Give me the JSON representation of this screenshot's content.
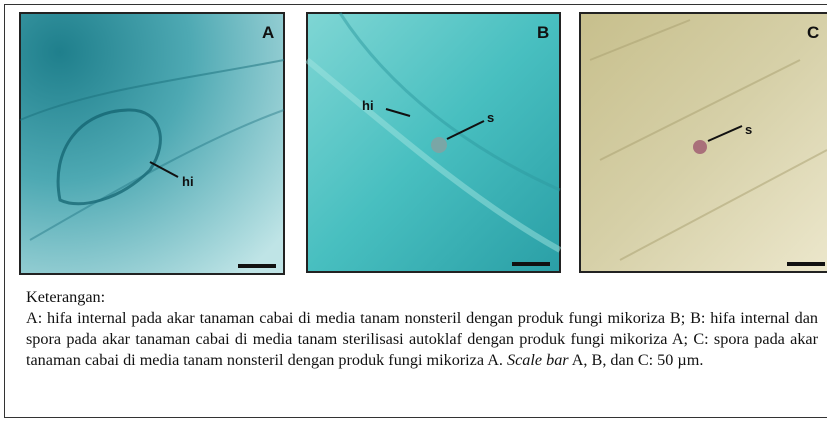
{
  "panels": [
    {
      "label": "A",
      "annotations": [
        "hi"
      ]
    },
    {
      "label": "B",
      "annotations": [
        "hi",
        "s"
      ]
    },
    {
      "label": "C",
      "annotations": [
        "s"
      ]
    }
  ],
  "caption": {
    "heading": "Keterangan:",
    "text_before": "A: hifa internal pada akar tanaman cabai di media tanam nonsteril dengan produk fungi mikoriza B; B: hifa internal dan spora pada akar tanaman cabai di media tanam sterilisasi autoklaf dengan produk fungi mikoriza A; C: spora pada akar tanaman cabai di media tanam nonsteril dengan produk fungi mikoriza A. ",
    "italic": "Scale bar",
    "text_after": " A, B, dan C: 50 µm."
  }
}
